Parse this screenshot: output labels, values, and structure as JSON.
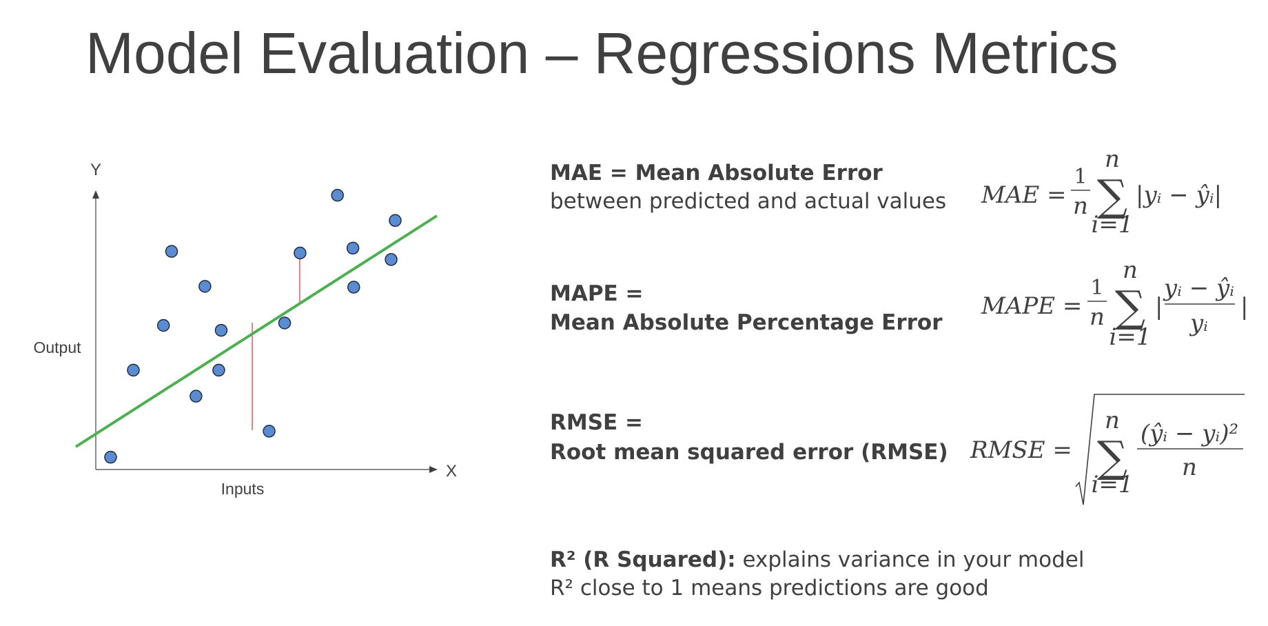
{
  "title": "Model Evaluation – Regressions Metrics",
  "diagram": {
    "y_axis": "Y",
    "x_axis": "X",
    "y_label": "Output",
    "x_label": "Inputs"
  },
  "metrics": [
    {
      "heading": "MAE = Mean Absolute Error",
      "description": "between predicted and actual values"
    },
    {
      "heading": "MAPE =",
      "description": "Mean Absolute Percentage Error"
    },
    {
      "heading": "RMSE =",
      "description": "Root mean squared error (RMSE)"
    }
  ],
  "r_squared": {
    "bold": "R² (R Squared):",
    "text": " explains variance in your model",
    "line2": "R² close to 1 means predictions are good"
  },
  "formulas": [
    {
      "lhs": "MAE =",
      "numerator": "1",
      "denominator": "n",
      "sum_upper": "n",
      "sum_lower": "i=1",
      "sigma": "∑",
      "body": "|yᵢ − ŷᵢ|"
    },
    {
      "lhs": "MAPE =",
      "numerator": "1",
      "denominator": "n",
      "sum_upper": "n",
      "sum_lower": "i=1",
      "sigma": "∑",
      "bar": "|",
      "inner_numerator": "yᵢ − ŷᵢ",
      "inner_denominator": "yᵢ"
    },
    {
      "lhs": "RMSE =",
      "sum_upper": "n",
      "sum_lower": "i=1",
      "sigma": "∑",
      "numerator": "(ŷᵢ − yᵢ)²",
      "denominator": "n"
    }
  ]
}
